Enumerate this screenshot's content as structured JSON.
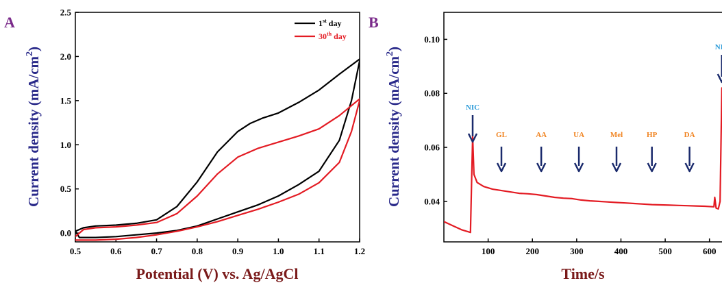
{
  "colors": {
    "black": "#000000",
    "red": "#e31b23",
    "arrow": "#1a2a6c",
    "nic": "#2a9ad8",
    "interferent": "#f0821e",
    "ylabel": "#2a2a8a",
    "xlabel": "#7a1a1a",
    "panel": "#7a2a8a"
  },
  "chart_data": [
    {
      "panel": "A",
      "type": "line",
      "xlabel": "Potential (V) vs. Ag/AgCl",
      "ylabel": "Current density (mA/cm2)",
      "xlim": [
        0.5,
        1.2
      ],
      "ylim": [
        -0.1,
        2.5
      ],
      "xticks": [
        "0.5",
        "0.6",
        "0.7",
        "0.8",
        "0.9",
        "1.0",
        "1.1",
        "1.2"
      ],
      "yticks": [
        "0.0",
        "0.5",
        "1.0",
        "1.5",
        "2.0",
        "2.5"
      ],
      "legend_position": "top-right",
      "series": [
        {
          "name": "1st day",
          "name_base": "1",
          "name_sup": "st",
          "name_rest": " day",
          "color": "#000000",
          "x": [
            0.5,
            0.52,
            0.55,
            0.6,
            0.65,
            0.7,
            0.75,
            0.8,
            0.85,
            0.9,
            0.93,
            0.96,
            1.0,
            1.05,
            1.1,
            1.15,
            1.2,
            1.2,
            1.18,
            1.15,
            1.1,
            1.05,
            1.0,
            0.95,
            0.9,
            0.85,
            0.8,
            0.75,
            0.7,
            0.65,
            0.6,
            0.55,
            0.51,
            0.5
          ],
          "y": [
            0.02,
            0.06,
            0.08,
            0.09,
            0.11,
            0.15,
            0.3,
            0.58,
            0.92,
            1.15,
            1.24,
            1.3,
            1.36,
            1.48,
            1.62,
            1.8,
            1.97,
            1.95,
            1.5,
            1.05,
            0.7,
            0.55,
            0.42,
            0.32,
            0.24,
            0.16,
            0.08,
            0.03,
            0.0,
            -0.02,
            -0.04,
            -0.05,
            -0.05,
            0.02
          ]
        },
        {
          "name": "30th day",
          "name_base": "30",
          "name_sup": "th",
          "name_rest": " day",
          "color": "#e31b23",
          "x": [
            0.5,
            0.52,
            0.55,
            0.6,
            0.65,
            0.7,
            0.75,
            0.8,
            0.85,
            0.9,
            0.95,
            1.0,
            1.05,
            1.1,
            1.15,
            1.2,
            1.2,
            1.18,
            1.15,
            1.1,
            1.05,
            1.0,
            0.95,
            0.9,
            0.85,
            0.8,
            0.75,
            0.7,
            0.65,
            0.6,
            0.55,
            0.5
          ],
          "y": [
            -0.04,
            0.04,
            0.06,
            0.07,
            0.09,
            0.12,
            0.22,
            0.42,
            0.67,
            0.86,
            0.96,
            1.03,
            1.1,
            1.18,
            1.33,
            1.52,
            1.5,
            1.15,
            0.8,
            0.57,
            0.44,
            0.35,
            0.27,
            0.2,
            0.13,
            0.07,
            0.02,
            -0.02,
            -0.05,
            -0.07,
            -0.08,
            -0.08
          ]
        }
      ]
    },
    {
      "panel": "B",
      "type": "line",
      "xlabel": "Time/s",
      "ylabel": "Current density (mA/cm2)",
      "xlim": [
        0,
        650
      ],
      "ylim": [
        0.025,
        0.11
      ],
      "xticks": [
        "100",
        "200",
        "300",
        "400",
        "500",
        "600"
      ],
      "yticks": [
        "0.04",
        "0.06",
        "0.08",
        "0.10"
      ],
      "series": [
        {
          "color": "#e31b23",
          "x": [
            0,
            20,
            40,
            60,
            63,
            65,
            68,
            75,
            90,
            110,
            130,
            150,
            170,
            190,
            210,
            230,
            250,
            270,
            290,
            310,
            330,
            350,
            370,
            390,
            410,
            430,
            450,
            470,
            490,
            510,
            530,
            550,
            570,
            590,
            610,
            612,
            615,
            620,
            624,
            628,
            633,
            640,
            650
          ],
          "y": [
            0.0325,
            0.031,
            0.0295,
            0.0285,
            0.05,
            0.064,
            0.05,
            0.047,
            0.0455,
            0.0445,
            0.044,
            0.0435,
            0.043,
            0.0428,
            0.0425,
            0.042,
            0.0415,
            0.0412,
            0.041,
            0.0405,
            0.0402,
            0.04,
            0.0398,
            0.0396,
            0.0394,
            0.0392,
            0.039,
            0.0388,
            0.0387,
            0.0386,
            0.0385,
            0.0384,
            0.0383,
            0.0382,
            0.038,
            0.0415,
            0.0375,
            0.0372,
            0.04,
            0.082,
            0.058,
            0.0535,
            0.054
          ]
        }
      ],
      "annotations": [
        {
          "label": "NIC",
          "x": 65,
          "kind": "analyte"
        },
        {
          "label": "GL",
          "x": 130,
          "kind": "interferent"
        },
        {
          "label": "AA",
          "x": 220,
          "kind": "interferent"
        },
        {
          "label": "UA",
          "x": 305,
          "kind": "interferent"
        },
        {
          "label": "Mel",
          "x": 390,
          "kind": "interferent"
        },
        {
          "label": "HP",
          "x": 470,
          "kind": "interferent"
        },
        {
          "label": "DA",
          "x": 555,
          "kind": "interferent"
        },
        {
          "label": "NIC",
          "x": 628,
          "kind": "analyte"
        }
      ]
    }
  ]
}
